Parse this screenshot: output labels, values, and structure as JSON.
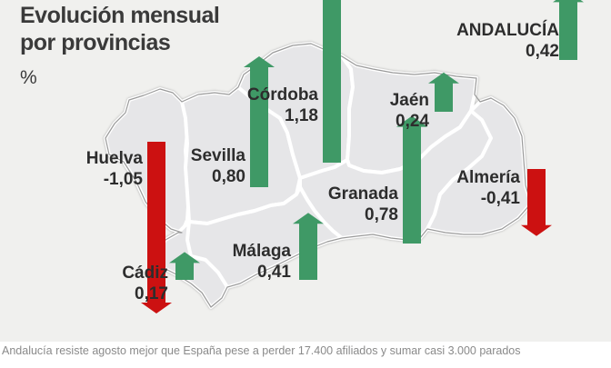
{
  "title": {
    "line1": "Evolución mensual",
    "line2": "por provincias"
  },
  "unit": "%",
  "caption": "Andalucía resiste agosto mejor que España pese a perder 17.400 afiliados y sumar casi 3.000 parados",
  "colors": {
    "positive": "#3f9966",
    "negative": "#cc1111",
    "region_fill": "#e6e6e8",
    "border": "#ffffff",
    "outline": "#9a9a9a",
    "background": "#f0f0ee"
  },
  "total": {
    "name": "ANDALUCÍA",
    "value": "0,42",
    "change": 0.42
  },
  "provinces": [
    {
      "id": "huelva",
      "name": "Huelva",
      "value": "-1,05",
      "change": -1.05
    },
    {
      "id": "sevilla",
      "name": "Sevilla",
      "value": "0,80",
      "change": 0.8
    },
    {
      "id": "cordoba",
      "name": "Córdoba",
      "value": "1,18",
      "change": 1.18
    },
    {
      "id": "jaen",
      "name": "Jaén",
      "value": "0,24",
      "change": 0.24
    },
    {
      "id": "granada",
      "name": "Granada",
      "value": "0,78",
      "change": 0.78
    },
    {
      "id": "almeria",
      "name": "Almería",
      "value": "-0,41",
      "change": -0.41
    },
    {
      "id": "malaga",
      "name": "Málaga",
      "value": "0,41",
      "change": 0.41
    },
    {
      "id": "cadiz",
      "name": "Cádiz",
      "value": "0,17",
      "change": 0.17
    }
  ]
}
